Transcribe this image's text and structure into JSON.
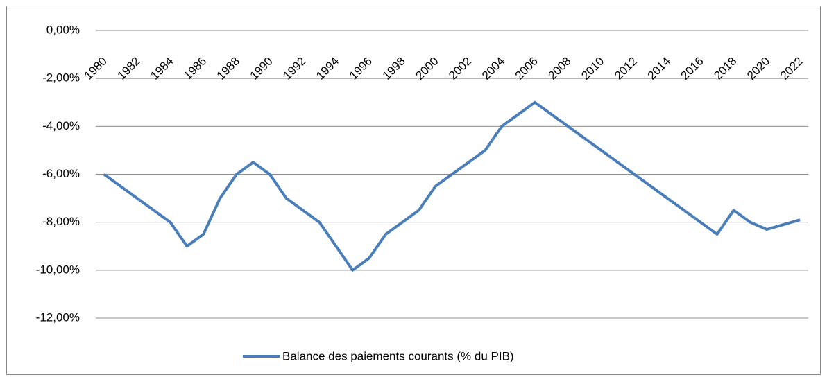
{
  "chart_data": {
    "type": "line",
    "categories": [
      "1980",
      null,
      "1982",
      null,
      "1984",
      null,
      "1986",
      null,
      "1988",
      null,
      "1990",
      null,
      "1992",
      null,
      "1994",
      null,
      "1996",
      null,
      "1998",
      null,
      "2000",
      null,
      "2002",
      null,
      "2004",
      null,
      "2006",
      null,
      "2008",
      null,
      "2010",
      null,
      "2012",
      null,
      "2014",
      null,
      "2016",
      null,
      "2018",
      null,
      "2020",
      null,
      "2022"
    ],
    "series": [
      {
        "name": "Balance des paiements courants (% du PIB)",
        "color": "#4a7ebb",
        "values": [
          -6,
          -6.5,
          -7,
          -7.5,
          -8,
          -9,
          -8.5,
          -7,
          -6,
          -5.5,
          -6,
          -7,
          -7.5,
          -8,
          -9,
          -10,
          -9.5,
          -8.5,
          -8,
          -7.5,
          -6.5,
          -6,
          -5.5,
          -5,
          -4,
          -3.5,
          -3,
          -3.5,
          -4,
          -4.5,
          -5,
          -5.5,
          -6,
          -6.5,
          -7,
          -7.5,
          -8,
          -8.5,
          -7.5,
          -8,
          -8.3,
          -8.1,
          -7.9
        ]
      }
    ],
    "ylim": [
      -12,
      0
    ],
    "yticks": [
      {
        "value": 0,
        "label": "0,00%"
      },
      {
        "value": -2,
        "label": "-2,00%"
      },
      {
        "value": -4,
        "label": "-4,00%"
      },
      {
        "value": -6,
        "label": "-6,00%"
      },
      {
        "value": -8,
        "label": "-8,00%"
      },
      {
        "value": -10,
        "label": "-10,00%"
      },
      {
        "value": -12,
        "label": "-12,00%"
      }
    ],
    "grid": true,
    "legend": "bottom"
  }
}
